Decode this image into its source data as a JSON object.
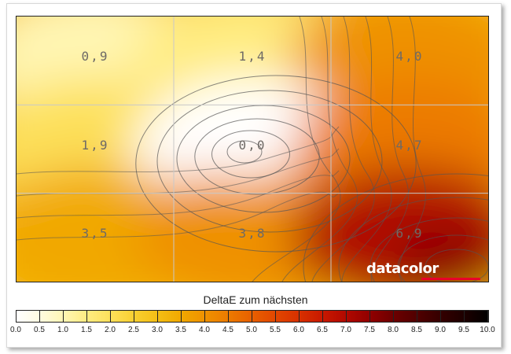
{
  "chart_data": {
    "type": "heatmap",
    "title": "DeltaE zum nächsten",
    "grid": "3x3",
    "zones": [
      [
        "0,9",
        "1,4",
        "4,0"
      ],
      [
        "1,9",
        "0,0",
        "4,7"
      ],
      [
        "3,5",
        "3,8",
        "6,9"
      ]
    ],
    "values": [
      [
        0.9,
        1.4,
        4.0
      ],
      [
        1.9,
        0.0,
        4.7
      ],
      [
        3.5,
        3.8,
        6.9
      ]
    ],
    "colorbar": {
      "min": 0.0,
      "max": 10.0,
      "step": 0.5,
      "tick_labels": [
        "0.0",
        "0.5",
        "1.0",
        "1.5",
        "2.0",
        "2.5",
        "3.0",
        "3.5",
        "4.0",
        "4.5",
        "5.0",
        "5.5",
        "6.0",
        "6.5",
        "7.0",
        "7.5",
        "8.0",
        "8.5",
        "9.0",
        "9.5",
        "10.0"
      ],
      "colors": [
        "#ffffff",
        "#fffbe0",
        "#fff6b4",
        "#ffec80",
        "#fde05a",
        "#f8cf30",
        "#f4be14",
        "#f1a800",
        "#ef9100",
        "#ec7a00",
        "#e85f00",
        "#e14600",
        "#d83000",
        "#c81800",
        "#b00800",
        "#900000",
        "#6c0000",
        "#500000",
        "#340000",
        "#1c0000",
        "#000000"
      ]
    },
    "grid_lines": true
  },
  "branding": {
    "logo_text": "datacolor"
  },
  "contour_color": "#555555"
}
